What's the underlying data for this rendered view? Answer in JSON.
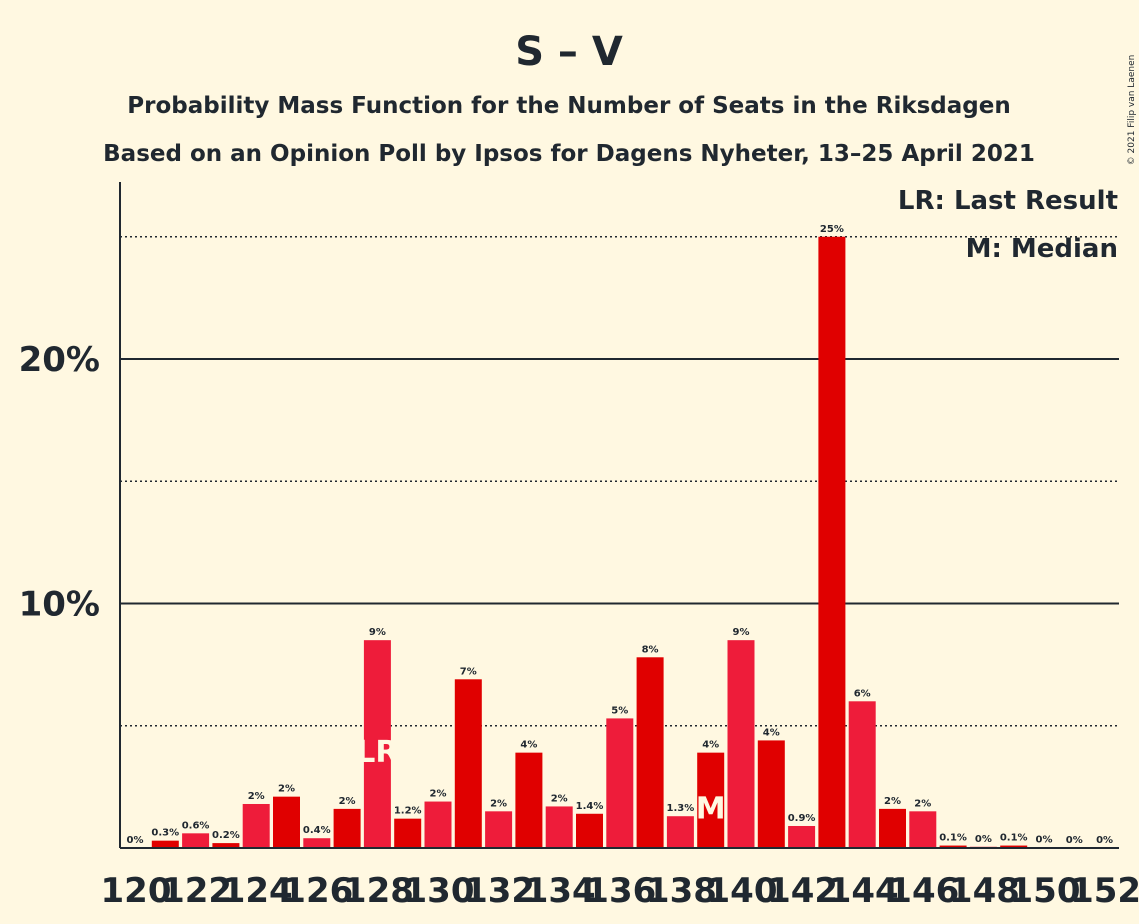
{
  "title": "S – V",
  "subtitle1": "Probability Mass Function for the Number of Seats in the Riksdagen",
  "subtitle2": "Based on an Opinion Poll by Ipsos for Dagens Nyheter, 13–25 April 2021",
  "copyright": "© 2021 Filip van Laenen",
  "legend": {
    "last_result": "LR: Last Result",
    "median": "M: Median"
  },
  "colors": {
    "background": "#fff8e1",
    "bar_dark": "#e00000",
    "bar_light": "#ee1c3a",
    "text": "#202830"
  },
  "chart_data": {
    "type": "bar",
    "title": "S – V",
    "xlabel": "",
    "ylabel": "",
    "ylim": [
      0,
      27
    ],
    "yticks": [
      10,
      20
    ],
    "ytick_labels": [
      "10%",
      "20%"
    ],
    "dotted_gridlines": [
      5,
      15,
      25
    ],
    "x_tick_labels": [
      "120",
      "122",
      "124",
      "126",
      "128",
      "130",
      "132",
      "134",
      "136",
      "138",
      "140",
      "142",
      "144",
      "146",
      "148",
      "150",
      "152"
    ],
    "categories": [
      120,
      121,
      122,
      123,
      124,
      125,
      126,
      127,
      128,
      129,
      130,
      131,
      132,
      133,
      134,
      135,
      136,
      137,
      138,
      139,
      140,
      141,
      142,
      143,
      144,
      145,
      146,
      147,
      148,
      149,
      150,
      151,
      152
    ],
    "values": [
      0,
      0.3,
      0.6,
      0.2,
      1.8,
      2.1,
      0.4,
      1.6,
      8.5,
      1.2,
      1.9,
      6.9,
      1.5,
      3.9,
      1.7,
      1.4,
      5.3,
      7.8,
      1.3,
      3.9,
      8.5,
      4.4,
      0.9,
      25,
      6.0,
      1.6,
      1.5,
      0.1,
      0.05,
      0.1,
      0.02,
      0.01,
      0.01
    ],
    "data_labels": [
      "0%",
      "0.3%",
      "0.6%",
      "0.2%",
      "2%",
      "2%",
      "0.4%",
      "2%",
      "9%",
      "1.2%",
      "2%",
      "7%",
      "2%",
      "4%",
      "2%",
      "1.4%",
      "5%",
      "8%",
      "1.3%",
      "4%",
      "9%",
      "4%",
      "0.9%",
      "25%",
      "6%",
      "2%",
      "2%",
      "0.1%",
      "0%",
      "0.1%",
      "0%",
      "0%",
      "0%"
    ],
    "last_result": 128,
    "last_result_marker": "LR",
    "median": 139,
    "median_marker": "M",
    "grid": true,
    "legend_placement": "top-right"
  }
}
